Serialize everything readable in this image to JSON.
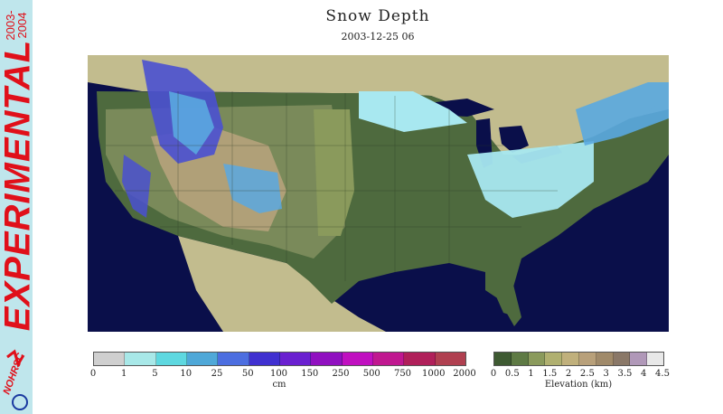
{
  "banner": {
    "label": "EXPERIMENTAL",
    "season": "2003-\n2004",
    "logo_text": "NOHRSC"
  },
  "title": "Snow Depth",
  "subtitle": "2003-12-25 06",
  "legend_snow": {
    "ticks": [
      "0",
      "1",
      "5",
      "10",
      "25",
      "50",
      "100",
      "150",
      "250",
      "500",
      "750",
      "1000",
      "2000"
    ],
    "unit": "cm",
    "colors": [
      "#cfcfcf",
      "#a8e8e8",
      "#5ed8e0",
      "#4fa8d8",
      "#4c6ee0",
      "#4030d0",
      "#6a20d0",
      "#9010c0",
      "#c010c0",
      "#c01890",
      "#b0205a",
      "#b04050"
    ]
  },
  "legend_elev": {
    "ticks": [
      "0",
      "0.5",
      "1",
      "1.5",
      "2",
      "2.5",
      "3",
      "3.5",
      "4",
      "4.5"
    ],
    "label": "Elevation (km)",
    "colors": [
      "#3e5a32",
      "#5e7a44",
      "#8a9a5c",
      "#b0b070",
      "#c0b07c",
      "#b8a07a",
      "#a08a6a",
      "#8a7868",
      "#b098b8",
      "#e8e8e8"
    ]
  },
  "map": {
    "land_low": "#4e6a3e",
    "land_mid": "#7a8a5a",
    "land_high": "#b0a078",
    "water": "#0a0f4a",
    "outside": "#c2bc8e",
    "snow_light": "#a8e8f0",
    "snow_mid": "#5aa8e0",
    "snow_deep": "#4a50d0"
  }
}
